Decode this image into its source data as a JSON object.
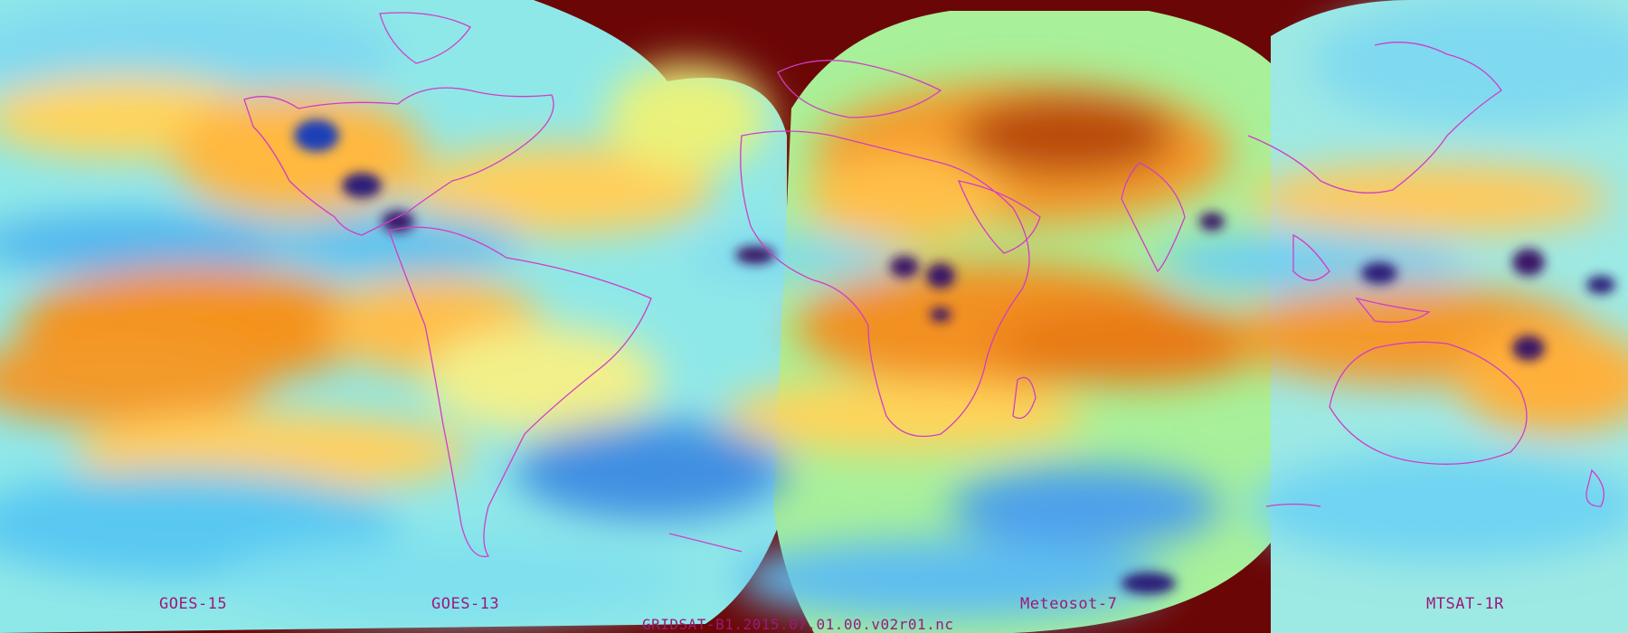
{
  "colors": {
    "background": "#6b0606",
    "label": "#9b1a7a",
    "coastline": "#d23cc8",
    "palette": {
      "dry_dark": "#a0400a",
      "dry": "#f08a1e",
      "mid_warm": "#ffc84a",
      "mid": "#f7f27a",
      "mid_green": "#9ff08a",
      "moist_light": "#7fe7ec",
      "moist": "#35a8ee",
      "very_moist": "#1f4fc9",
      "deep_convection": "#3a1466"
    }
  },
  "satellites": [
    {
      "name": "GOES-15"
    },
    {
      "name": "GOES-13"
    },
    {
      "name": "Meteosot-7"
    },
    {
      "name": "MTSAT-1R"
    }
  ],
  "filename": "GRIDSAT-B1.2015.07.01.00.v02r01.nc"
}
